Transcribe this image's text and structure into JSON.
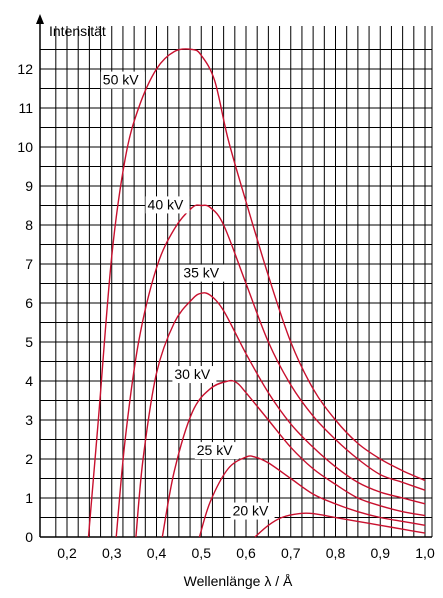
{
  "chart_data": {
    "type": "line",
    "title": "",
    "xlabel": "Wellenlänge  λ / Å",
    "ylabel": "Intensität",
    "xlim": [
      0.2,
      1.0
    ],
    "ylim": [
      0,
      12.5
    ],
    "x_ticks": [
      0.2,
      0.3,
      0.4,
      0.5,
      0.6,
      0.7,
      0.8,
      0.9,
      1.0
    ],
    "x_tick_labels": [
      "0,2",
      "0,3",
      "0,4",
      "0,5",
      "0,6",
      "0,7",
      "0,8",
      "0,9",
      "1,0"
    ],
    "y_ticks": [
      0,
      1,
      2,
      3,
      4,
      5,
      6,
      7,
      8,
      9,
      10,
      11,
      12
    ],
    "y_tick_labels": [
      "0",
      "1",
      "2",
      "3",
      "4",
      "5",
      "6",
      "7",
      "8",
      "9",
      "10",
      "11",
      "12"
    ],
    "grid": true,
    "line_color": "#c8102e",
    "series": [
      {
        "name": "50 kV",
        "x": [
          0.248,
          0.27,
          0.3,
          0.33,
          0.36,
          0.4,
          0.44,
          0.48,
          0.5,
          0.53,
          0.56,
          0.6,
          0.65,
          0.7,
          0.75,
          0.8,
          0.85,
          0.9,
          0.95,
          1.0
        ],
        "y": [
          0,
          3.0,
          7.2,
          9.7,
          11.0,
          12.0,
          12.45,
          12.5,
          12.35,
          11.7,
          10.2,
          8.6,
          6.7,
          5.0,
          3.8,
          3.0,
          2.4,
          2.0,
          1.7,
          1.45
        ]
      },
      {
        "name": "40 kV",
        "x": [
          0.31,
          0.33,
          0.36,
          0.4,
          0.44,
          0.48,
          0.5,
          0.52,
          0.55,
          0.6,
          0.65,
          0.7,
          0.75,
          0.8,
          0.85,
          0.9,
          0.95,
          1.0
        ],
        "y": [
          0,
          2.5,
          5.0,
          6.9,
          7.9,
          8.45,
          8.5,
          8.45,
          8.0,
          6.5,
          5.0,
          3.9,
          3.1,
          2.5,
          2.0,
          1.6,
          1.4,
          1.2
        ]
      },
      {
        "name": "35 kV",
        "x": [
          0.354,
          0.37,
          0.4,
          0.44,
          0.48,
          0.5,
          0.52,
          0.55,
          0.6,
          0.65,
          0.7,
          0.75,
          0.8,
          0.85,
          0.9,
          0.95,
          1.0
        ],
        "y": [
          0,
          2.0,
          4.2,
          5.5,
          6.1,
          6.25,
          6.2,
          5.8,
          4.7,
          3.7,
          2.9,
          2.3,
          1.8,
          1.4,
          1.15,
          1.0,
          0.85
        ]
      },
      {
        "name": "30 kV",
        "x": [
          0.413,
          0.44,
          0.48,
          0.52,
          0.56,
          0.58,
          0.6,
          0.65,
          0.7,
          0.75,
          0.8,
          0.85,
          0.9,
          0.95,
          1.0
        ],
        "y": [
          0,
          1.7,
          3.2,
          3.8,
          4.0,
          3.95,
          3.7,
          3.0,
          2.3,
          1.75,
          1.35,
          1.0,
          0.8,
          0.65,
          0.55
        ]
      },
      {
        "name": "25 kV",
        "x": [
          0.496,
          0.52,
          0.56,
          0.6,
          0.62,
          0.65,
          0.7,
          0.75,
          0.8,
          0.85,
          0.9,
          0.95,
          1.0
        ],
        "y": [
          0,
          0.9,
          1.75,
          2.05,
          2.05,
          1.9,
          1.5,
          1.1,
          0.85,
          0.65,
          0.5,
          0.4,
          0.3
        ]
      },
      {
        "name": "20 kV",
        "x": [
          0.62,
          0.65,
          0.68,
          0.72,
          0.75,
          0.8,
          0.85,
          0.9,
          0.95,
          1.0
        ],
        "y": [
          0,
          0.3,
          0.5,
          0.6,
          0.6,
          0.5,
          0.4,
          0.3,
          0.2,
          0.1
        ]
      }
    ],
    "labels": [
      {
        "text": "50 kV",
        "x": 0.28,
        "y": 11.6
      },
      {
        "text": "40 kV",
        "x": 0.38,
        "y": 8.4
      },
      {
        "text": "35 kV",
        "x": 0.46,
        "y": 6.65
      },
      {
        "text": "30 kV",
        "x": 0.44,
        "y": 4.05
      },
      {
        "text": "25 kV",
        "x": 0.49,
        "y": 2.1
      },
      {
        "text": "20 kV",
        "x": 0.57,
        "y": 0.55
      }
    ]
  }
}
